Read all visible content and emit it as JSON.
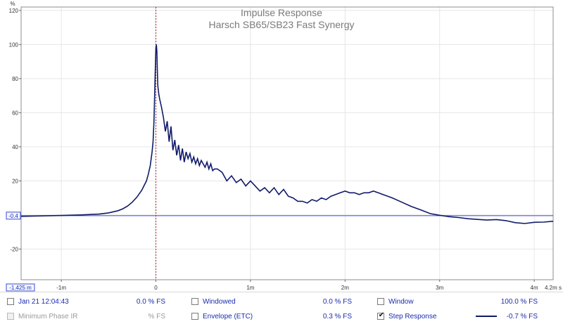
{
  "chart_data": {
    "type": "line",
    "title": "Impulse Response",
    "subtitle": "Harsch SB65/SB23 Fast Synergy",
    "ylabel": "%",
    "xlabel": "",
    "x_unit": "m",
    "xlim": [
      -1.425,
      4.2
    ],
    "ylim": [
      -38,
      122
    ],
    "grid": true,
    "y_ticks": [
      {
        "value": 120,
        "label": "120"
      },
      {
        "value": 100,
        "label": "100"
      },
      {
        "value": 80,
        "label": "80"
      },
      {
        "value": 60,
        "label": "60"
      },
      {
        "value": 40,
        "label": "40"
      },
      {
        "value": 20,
        "label": "20"
      },
      {
        "value": 0,
        "label": ""
      },
      {
        "value": -20,
        "label": "-20"
      }
    ],
    "x_ticks": [
      {
        "value": -1,
        "label": "-1m"
      },
      {
        "value": 0,
        "label": "0"
      },
      {
        "value": 1,
        "label": "1m"
      },
      {
        "value": 2,
        "label": "2m"
      },
      {
        "value": 3,
        "label": "3m"
      },
      {
        "value": 4,
        "label": "4m"
      }
    ],
    "x_end_label": "4.2m s",
    "x_start_readout": "-1.425 m",
    "y_readout": "-0.4",
    "cursor_y": -0.4,
    "marker_x": 0,
    "series": [
      {
        "color": "#101a6a",
        "x": [
          -1.425,
          -1.0,
          -0.8,
          -0.6,
          -0.5,
          -0.4,
          -0.35,
          -0.3,
          -0.25,
          -0.2,
          -0.15,
          -0.1,
          -0.08,
          -0.06,
          -0.04,
          -0.03,
          -0.02,
          -0.01,
          0.0,
          0.005,
          0.01,
          0.015,
          0.02,
          0.03,
          0.04,
          0.06,
          0.08,
          0.1,
          0.12,
          0.14,
          0.16,
          0.18,
          0.2,
          0.22,
          0.24,
          0.26,
          0.28,
          0.3,
          0.32,
          0.34,
          0.36,
          0.38,
          0.4,
          0.42,
          0.44,
          0.46,
          0.48,
          0.5,
          0.52,
          0.54,
          0.56,
          0.58,
          0.6,
          0.62,
          0.65,
          0.7,
          0.75,
          0.8,
          0.85,
          0.9,
          0.95,
          1.0,
          1.05,
          1.1,
          1.15,
          1.2,
          1.25,
          1.3,
          1.35,
          1.4,
          1.45,
          1.5,
          1.55,
          1.6,
          1.65,
          1.7,
          1.75,
          1.8,
          1.85,
          1.9,
          1.95,
          2.0,
          2.05,
          2.1,
          2.15,
          2.2,
          2.25,
          2.3,
          2.35,
          2.4,
          2.5,
          2.6,
          2.7,
          2.8,
          2.9,
          3.0,
          3.1,
          3.2,
          3.3,
          3.4,
          3.5,
          3.6,
          3.7,
          3.8,
          3.9,
          4.0,
          4.1,
          4.2
        ],
        "y": [
          -0.8,
          -0.3,
          0.0,
          0.5,
          1.2,
          2.5,
          3.6,
          5.2,
          7.5,
          10.5,
          14.5,
          20.0,
          24.0,
          29.0,
          37.0,
          43.0,
          55.0,
          78.0,
          98.0,
          100.0,
          96.0,
          86.0,
          76.0,
          71.0,
          68.0,
          63.0,
          57.0,
          49.0,
          55.0,
          43.0,
          52.0,
          38.0,
          44.0,
          35.0,
          41.0,
          32.0,
          39.0,
          31.0,
          37.0,
          33.0,
          36.0,
          31.0,
          34.0,
          30.0,
          33.0,
          29.0,
          32.0,
          30.0,
          28.0,
          31.0,
          27.0,
          30.0,
          26.0,
          27.0,
          27.0,
          25.0,
          20.0,
          23.0,
          19.0,
          21.0,
          17.0,
          20.0,
          17.0,
          14.0,
          16.0,
          13.0,
          16.0,
          12.0,
          15.0,
          11.0,
          10.0,
          8.0,
          8.0,
          7.0,
          9.0,
          8.0,
          10.0,
          9.0,
          11.0,
          12.0,
          13.0,
          14.0,
          13.0,
          13.0,
          12.0,
          13.0,
          13.0,
          14.0,
          13.0,
          12.0,
          10.0,
          7.5,
          5.0,
          3.0,
          0.8,
          -0.2,
          -1.0,
          -1.5,
          -2.2,
          -2.6,
          -3.0,
          -2.7,
          -3.3,
          -4.5,
          -5.0,
          -4.3,
          -4.2,
          -3.7
        ]
      }
    ]
  },
  "legend": {
    "row1": {
      "date_label": "Jan 21 12:04:43",
      "date_value": "0.0 % FS",
      "windowed_label": "Windowed",
      "windowed_value": "0.0 % FS",
      "window_label": "Window",
      "window_value": "100.0 % FS"
    },
    "row2": {
      "minphase_label": "Minimum Phase IR",
      "minphase_value": "% FS",
      "envelope_label": "Envelope (ETC)",
      "envelope_value": "0.3 % FS",
      "step_label": "Step Response",
      "step_checked": "✔",
      "series_value": "-0.7 % FS"
    }
  }
}
